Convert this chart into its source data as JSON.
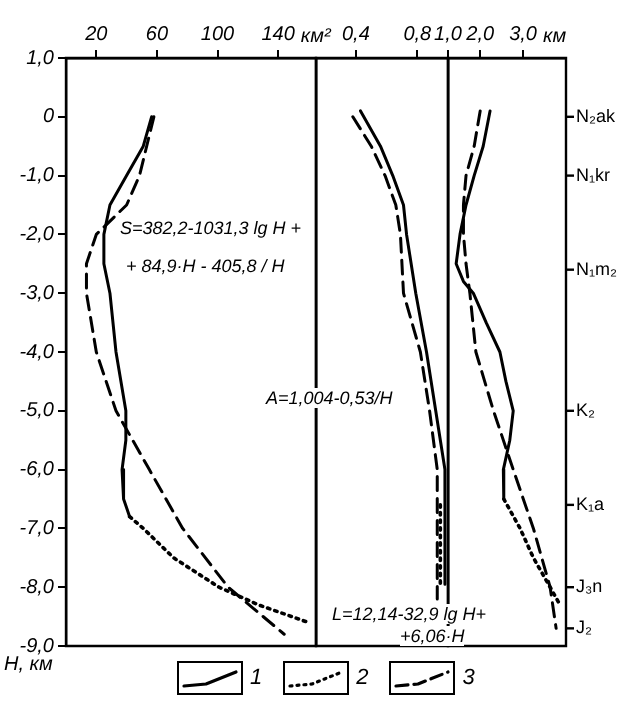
{
  "chart_data": [
    {
      "type": "line",
      "xlabel": "км²",
      "ylabel": "H, км",
      "xlim": [
        0,
        165
      ],
      "xticks": [
        20,
        60,
        100,
        140
      ],
      "ylim": [
        -9,
        1
      ],
      "yticks": [
        {
          "value": 1,
          "label": "1,0"
        },
        {
          "value": 0,
          "label": "0"
        },
        {
          "value": -1,
          "label": "-1,0"
        },
        {
          "value": -2,
          "label": "-2,0"
        },
        {
          "value": -3,
          "label": "-3,0"
        },
        {
          "value": -4,
          "label": "-4,0"
        },
        {
          "value": -5,
          "label": "-5,0"
        },
        {
          "value": -6,
          "label": "-6,0"
        },
        {
          "value": -7,
          "label": "-7,0"
        },
        {
          "value": -8,
          "label": "-8,0"
        },
        {
          "value": -9,
          "label": "-9,0"
        }
      ],
      "legend": "bottom",
      "annotations": [
        "S=382,2-1031,3 lg H +",
        "+ 84,9·H - 405,8 / H"
      ],
      "series": [
        {
          "name": "1",
          "color": "#000000",
          "line_style": "solid",
          "x": [
            56.5,
            51,
            40,
            29,
            25,
            25,
            29,
            33,
            39.5,
            39.5,
            37,
            38,
            42
          ],
          "values": [
            0,
            -0.5,
            -1,
            -1.5,
            -2,
            -2.5,
            -3,
            -4,
            -5,
            -5.5,
            -6,
            -6.5,
            -6.8
          ]
        },
        {
          "name": "2",
          "color": "#000000",
          "line_style": "dotted",
          "x": [
            42,
            51,
            71,
            101,
            127,
            160
          ],
          "values": [
            -6.8,
            -7,
            -7.5,
            -8,
            -8.3,
            -8.6
          ]
        },
        {
          "name": "3",
          "color": "#000000",
          "line_style": "dashed",
          "x": [
            58,
            48.5,
            40,
            20,
            13.5,
            13.5,
            20,
            33,
            55,
            77,
            107,
            144
          ],
          "values": [
            0,
            -1,
            -1.5,
            -2,
            -2.5,
            -3,
            -4,
            -5,
            -6,
            -7,
            -8,
            -8.8
          ]
        }
      ]
    },
    {
      "type": "line",
      "xlim": [
        0.14,
        1.0
      ],
      "xticks": [
        {
          "value": 0.4,
          "label": "0,4"
        },
        {
          "value": 0.8,
          "label": "0,8"
        },
        {
          "value": 1,
          "label": "1,0"
        }
      ],
      "ylim": [
        -9,
        1
      ],
      "tick_labels": "x",
      "annotations": [
        "A=1,004-0,53/H"
      ],
      "series": [
        {
          "color": "#000000",
          "line_style": "solid",
          "x": [
            0.43,
            0.56,
            0.64,
            0.71,
            0.73,
            0.79,
            0.86,
            0.92,
            0.98,
            0.98
          ],
          "values": [
            0.1,
            -0.5,
            -1,
            -1.5,
            -2,
            -3,
            -4,
            -5,
            -6,
            -7.95
          ]
        },
        {
          "color": "#000000",
          "line_style": "dotted",
          "x": [
            0.95,
            0.95
          ],
          "values": [
            -6.6,
            -7.95
          ]
        },
        {
          "color": "#000000",
          "line_style": "dashed",
          "x": [
            0.38,
            0.5,
            0.59,
            0.66,
            0.69,
            0.71,
            0.82,
            0.88,
            0.93,
            0.93
          ],
          "values": [
            0,
            -0.5,
            -1,
            -1.5,
            -2,
            -3,
            -4,
            -5,
            -6,
            -8.2
          ]
        }
      ]
    },
    {
      "type": "line",
      "xlabel": "км",
      "xlim": [
        1.25,
        4.0
      ],
      "xticks": [
        {
          "value": 2,
          "label": "2,0"
        },
        {
          "value": 3,
          "label": "3,0"
        }
      ],
      "ylim": [
        -9,
        1
      ],
      "tick_labels": "x",
      "annotations": [
        "L=12,14-32,9 lg H+",
        "+6,06·H"
      ],
      "ref_lines": [
        {
          "axis": "y",
          "value": 0,
          "label": "N₂ak"
        },
        {
          "axis": "y",
          "value": -1,
          "label": "N₁kr"
        },
        {
          "axis": "y",
          "value": -2.6,
          "label": "N₁m₂"
        },
        {
          "axis": "y",
          "value": -5,
          "label": "K₂"
        },
        {
          "axis": "y",
          "value": -6.6,
          "label": "K₁a"
        },
        {
          "axis": "y",
          "value": -8,
          "label": "J₃n"
        },
        {
          "axis": "y",
          "value": -8.7,
          "label": "J₂"
        }
      ],
      "series": [
        {
          "color": "#000000",
          "line_style": "solid",
          "x": [
            2.23,
            2.07,
            1.86,
            1.67,
            1.53,
            1.44,
            1.61,
            1.84,
            2.14,
            2.46,
            2.6,
            2.77,
            2.69,
            2.54,
            2.55
          ],
          "values": [
            0.1,
            -0.5,
            -1,
            -1.5,
            -2,
            -2.5,
            -2.8,
            -3,
            -3.5,
            -4,
            -4.5,
            -5,
            -5.5,
            -6,
            -6.5
          ]
        },
        {
          "color": "#000000",
          "line_style": "dotted",
          "x": [
            2.55,
            2.93,
            3.24,
            3.63,
            3.86
          ],
          "values": [
            -6.5,
            -7,
            -7.5,
            -8,
            -8.3
          ]
        },
        {
          "color": "#000000",
          "line_style": "dashed",
          "x": [
            2.0,
            1.86,
            1.67,
            1.61,
            1.61,
            1.67,
            1.76,
            1.9,
            2.31,
            2.77,
            3.24,
            3.63,
            3.77
          ],
          "values": [
            0.1,
            -0.5,
            -1,
            -1.5,
            -2,
            -2.5,
            -3,
            -4,
            -5,
            -6,
            -7,
            -8,
            -8.7
          ]
        }
      ]
    }
  ]
}
